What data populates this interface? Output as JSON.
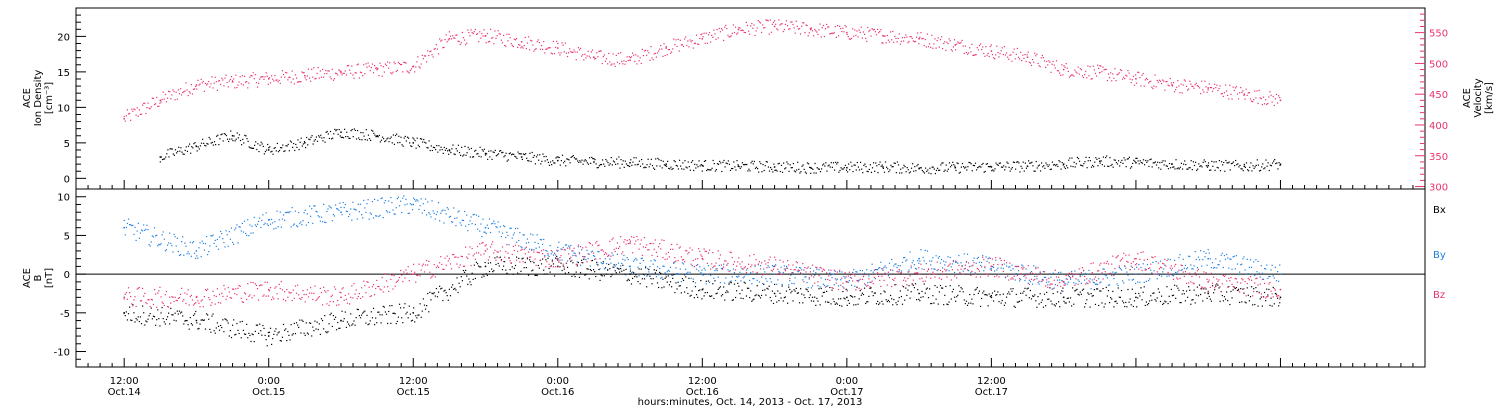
{
  "chart_data": [
    {
      "type": "scatter",
      "panel": "top",
      "ylabel_left": [
        "ACE",
        "Ion Density",
        "[cm⁻³]"
      ],
      "ylabel_right": [
        "ACE",
        "Velocity",
        "[km/s]"
      ],
      "ylim_left": [
        -1.5,
        24
      ],
      "ylim_right": [
        296,
        590
      ],
      "left_ticks": [
        0,
        5,
        10,
        15,
        20
      ],
      "right_ticks": [
        300,
        350,
        400,
        450,
        500,
        550
      ],
      "grid": false,
      "series": [
        {
          "name": "Ion Density",
          "axis": "left",
          "color": "#000000",
          "points": [
            [
              3,
              3
            ],
            [
              6,
              4.5
            ],
            [
              9,
              6
            ],
            [
              12,
              4
            ],
            [
              15,
              5
            ],
            [
              18,
              6.5
            ],
            [
              21,
              6
            ],
            [
              24,
              5
            ],
            [
              27,
              4
            ],
            [
              30,
              3.5
            ],
            [
              33,
              3
            ],
            [
              36,
              2.5
            ],
            [
              39,
              2.3
            ],
            [
              42,
              2.2
            ],
            [
              45,
              2
            ],
            [
              48,
              1.8
            ],
            [
              51,
              1.7
            ],
            [
              54,
              1.6
            ],
            [
              57,
              1.5
            ],
            [
              60,
              1.5
            ],
            [
              63,
              1.6
            ],
            [
              66,
              1.4
            ],
            [
              69,
              1.5
            ],
            [
              72,
              1.6
            ],
            [
              75,
              1.7
            ],
            [
              78,
              2
            ],
            [
              81,
              2.4
            ],
            [
              84,
              2.2
            ],
            [
              87,
              2
            ],
            [
              90,
              1.8
            ],
            [
              93,
              1.7
            ],
            [
              96,
              2
            ]
          ]
        },
        {
          "name": "Velocity",
          "axis": "right",
          "color": "#e8336a",
          "points": [
            [
              0,
              410
            ],
            [
              3,
              440
            ],
            [
              6,
              465
            ],
            [
              9,
              470
            ],
            [
              12,
              475
            ],
            [
              15,
              480
            ],
            [
              18,
              485
            ],
            [
              21,
              490
            ],
            [
              24,
              495
            ],
            [
              27,
              540
            ],
            [
              30,
              545
            ],
            [
              33,
              535
            ],
            [
              36,
              525
            ],
            [
              39,
              510
            ],
            [
              42,
              505
            ],
            [
              45,
              525
            ],
            [
              48,
              540
            ],
            [
              51,
              555
            ],
            [
              54,
              560
            ],
            [
              57,
              555
            ],
            [
              60,
              550
            ],
            [
              63,
              545
            ],
            [
              66,
              540
            ],
            [
              69,
              530
            ],
            [
              72,
              520
            ],
            [
              75,
              510
            ],
            [
              78,
              490
            ],
            [
              81,
              485
            ],
            [
              84,
              475
            ],
            [
              87,
              465
            ],
            [
              90,
              460
            ],
            [
              93,
              450
            ],
            [
              96,
              440
            ]
          ]
        }
      ]
    },
    {
      "type": "scatter",
      "panel": "bottom",
      "ylabel": [
        "ACE",
        "B",
        "[nT]"
      ],
      "ylim": [
        -12,
        11
      ],
      "yticks": [
        -10,
        -5,
        0,
        5,
        10
      ],
      "reference_line": 0,
      "grid": false,
      "series": [
        {
          "name": "Bx",
          "color": "#000000",
          "points": [
            [
              0,
              -5
            ],
            [
              6,
              -6
            ],
            [
              12,
              -8
            ],
            [
              18,
              -6
            ],
            [
              24,
              -5
            ],
            [
              30,
              1
            ],
            [
              36,
              1
            ],
            [
              42,
              0
            ],
            [
              48,
              -2
            ],
            [
              54,
              -2.5
            ],
            [
              60,
              -3
            ],
            [
              66,
              -2.5
            ],
            [
              72,
              -3
            ],
            [
              78,
              -3
            ],
            [
              84,
              -3
            ],
            [
              90,
              -2.5
            ],
            [
              96,
              -3
            ]
          ]
        },
        {
          "name": "By",
          "color": "#1f7fe0",
          "points": [
            [
              0,
              6
            ],
            [
              6,
              3
            ],
            [
              12,
              7
            ],
            [
              18,
              8
            ],
            [
              24,
              9
            ],
            [
              30,
              6
            ],
            [
              36,
              3
            ],
            [
              42,
              1
            ],
            [
              48,
              0
            ],
            [
              54,
              0
            ],
            [
              60,
              -1
            ],
            [
              66,
              2
            ],
            [
              72,
              1
            ],
            [
              78,
              -1
            ],
            [
              84,
              0
            ],
            [
              90,
              2
            ],
            [
              96,
              0
            ]
          ]
        },
        {
          "name": "Bz",
          "color": "#e8336a",
          "points": [
            [
              0,
              -3
            ],
            [
              6,
              -3
            ],
            [
              12,
              -2
            ],
            [
              18,
              -3
            ],
            [
              24,
              0
            ],
            [
              30,
              3
            ],
            [
              36,
              2
            ],
            [
              42,
              4
            ],
            [
              48,
              2
            ],
            [
              54,
              1
            ],
            [
              60,
              -1
            ],
            [
              66,
              0
            ],
            [
              72,
              1
            ],
            [
              78,
              -1
            ],
            [
              84,
              2
            ],
            [
              90,
              -1
            ],
            [
              96,
              -2
            ]
          ]
        }
      ]
    }
  ],
  "xaxis": {
    "title": "hours:minutes, Oct. 14, 2013 - Oct. 17, 2013",
    "range_hours": [
      -4,
      108
    ],
    "ticks": [
      {
        "hour": 0,
        "time": "12:00",
        "date": "Oct.14"
      },
      {
        "hour": 12,
        "time": "0:00",
        "date": "Oct.15"
      },
      {
        "hour": 24,
        "time": "12:00",
        "date": "Oct.15"
      },
      {
        "hour": 36,
        "time": "0:00",
        "date": "Oct.16"
      },
      {
        "hour": 48,
        "time": "12:00",
        "date": "Oct.16"
      },
      {
        "hour": 60,
        "time": "0:00",
        "date": "Oct.17"
      },
      {
        "hour": 72,
        "time": "12:00",
        "date": "Oct.17"
      }
    ]
  }
}
